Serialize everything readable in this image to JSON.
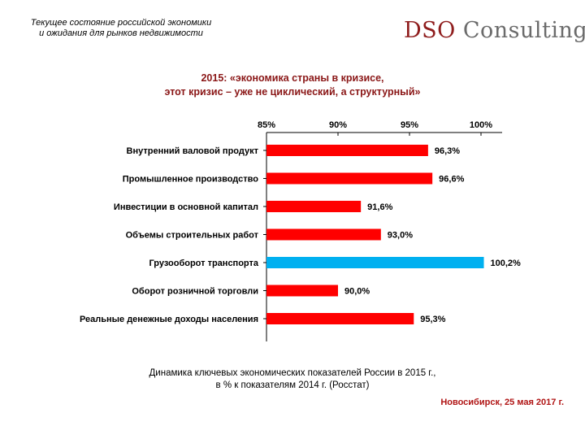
{
  "header": {
    "line1": "Текущее состояние российской экономики",
    "line2": "и ожидания для рынков недвижимости"
  },
  "logo": {
    "part1": "DSO",
    "part2": "Consulting"
  },
  "title": {
    "line1": "2015: «экономика страны в кризисе,",
    "line2": "этот кризис – уже не циклический, а структурный»"
  },
  "caption": {
    "line1": "Динамика ключевых экономических показателей России в 2015 г.,",
    "line2": "в % к показателям 2014 г. (Росстат)"
  },
  "footer": "Новосибирск, 25 мая 2017 г.",
  "colors": {
    "bar": "#ff0000",
    "highlight": "#00b0f0",
    "title": "#8a1616",
    "footer": "#b01414"
  },
  "chart_data": {
    "type": "bar",
    "orientation": "horizontal",
    "axis_position": "top",
    "xlim": [
      85,
      100
    ],
    "ticks": [
      "85%",
      "90%",
      "95%",
      "100%"
    ],
    "tick_values": [
      85,
      90,
      95,
      100
    ],
    "categories": [
      "Внутренний валовой продукт",
      "Промышленное производство",
      "Инвестиции в основной капитал",
      "Объемы строительных работ",
      "Грузооборот транспорта",
      "Оборот розничной торговли",
      "Реальные денежные доходы населения"
    ],
    "values": [
      96.3,
      96.6,
      91.6,
      93.0,
      100.2,
      90.0,
      95.3
    ],
    "value_labels": [
      "96,3%",
      "96,6%",
      "91,6%",
      "93,0%",
      "100,2%",
      "90,0%",
      "95,3%"
    ],
    "highlight_index": 4
  }
}
